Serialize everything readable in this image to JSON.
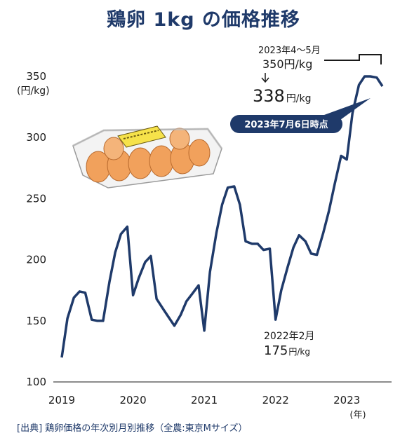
{
  "chart_data": {
    "type": "line",
    "title": "鶏卵 1kg の価格推移",
    "ylabel": "(円/kg)",
    "xlabel": "(年)",
    "ylim": [
      100,
      360
    ],
    "yticks": [
      100,
      150,
      200,
      250,
      300,
      350
    ],
    "xticks": [
      "2019",
      "2020",
      "2021",
      "2022",
      "2023"
    ],
    "grid": false,
    "series": [
      {
        "color": "#1f3a6a",
        "x": [
          2019.0,
          2019.08,
          2019.17,
          2019.25,
          2019.33,
          2019.42,
          2019.5,
          2019.58,
          2019.67,
          2019.75,
          2019.83,
          2019.92,
          2020.0,
          2020.08,
          2020.17,
          2020.25,
          2020.33,
          2020.42,
          2020.5,
          2020.58,
          2020.67,
          2020.75,
          2020.83,
          2020.92,
          2021.0,
          2021.08,
          2021.17,
          2021.25,
          2021.33,
          2021.42,
          2021.5,
          2021.58,
          2021.67,
          2021.75,
          2021.83,
          2021.92,
          2022.0,
          2022.08,
          2022.17,
          2022.25,
          2022.33,
          2022.42,
          2022.5,
          2022.58,
          2022.67,
          2022.75,
          2022.83,
          2022.92,
          2023.0,
          2023.08,
          2023.17,
          2023.25,
          2023.33,
          2023.42,
          2023.5
        ],
        "values": [
          120,
          152,
          169,
          174,
          173,
          151,
          150,
          150,
          182,
          206,
          221,
          227,
          171,
          185,
          198,
          203,
          168,
          160,
          153,
          146,
          155,
          166,
          172,
          179,
          142,
          190,
          222,
          245,
          259,
          260,
          245,
          215,
          213,
          213,
          208,
          209,
          151,
          175,
          194,
          210,
          220,
          215,
          205,
          204,
          222,
          240,
          262,
          285,
          282,
          320,
          343,
          350,
          350,
          349,
          342
        ]
      }
    ],
    "annotations": {
      "peak_period": "2023年4～5月",
      "peak_value": "350円/kg",
      "current_value_num": "338",
      "current_value_unit": "円/kg",
      "current_date": "2023年7月6日時点",
      "low_period": "2022年2月",
      "low_value_num": "175",
      "low_value_unit": "円/kg"
    },
    "source": "[出典] 鶏卵価格の年次別月別推移（全農:東京Mサイズ）"
  }
}
